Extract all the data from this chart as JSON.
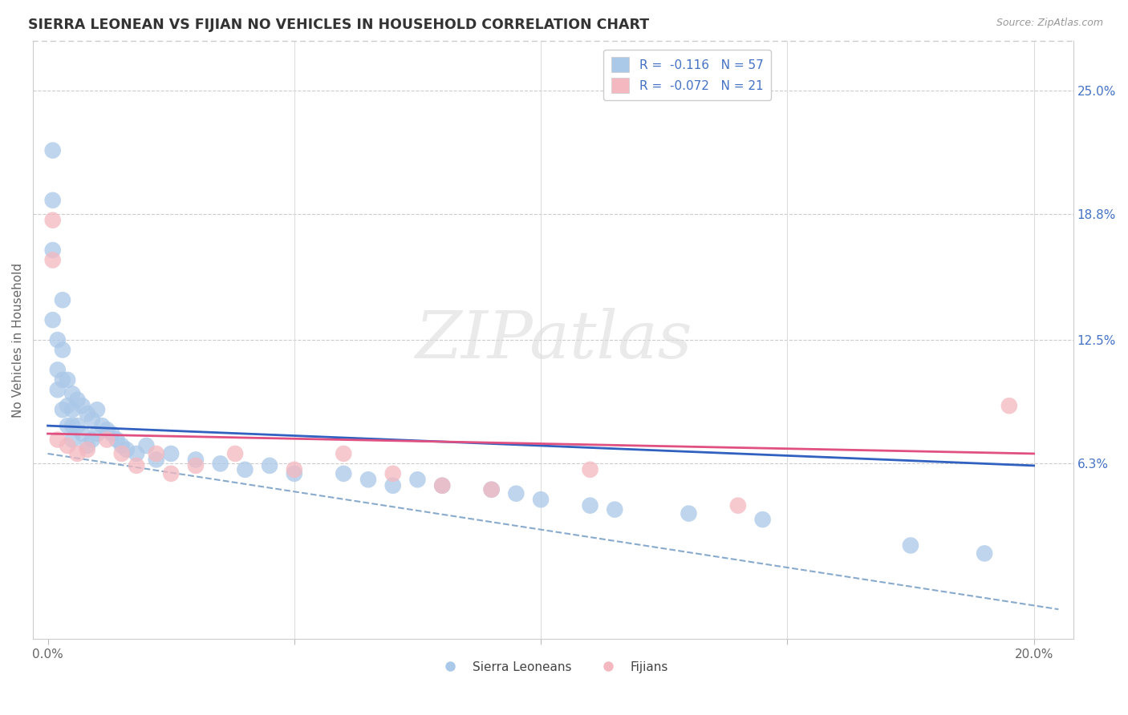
{
  "title": "SIERRA LEONEAN VS FIJIAN NO VEHICLES IN HOUSEHOLD CORRELATION CHART",
  "source": "Source: ZipAtlas.com",
  "ylabel_label": "No Vehicles in Household",
  "x_ticks": [
    0.0,
    0.05,
    0.1,
    0.15,
    0.2
  ],
  "x_tick_labels": [
    "0.0%",
    "",
    "",
    "",
    "20.0%"
  ],
  "y_tick_labels_right": [
    "25.0%",
    "18.8%",
    "12.5%",
    "6.3%"
  ],
  "y_ticks_right": [
    0.25,
    0.188,
    0.125,
    0.063
  ],
  "xlim": [
    -0.003,
    0.208
  ],
  "ylim": [
    -0.025,
    0.275
  ],
  "color_blue": "#aac8e8",
  "color_pink": "#f4b8c0",
  "line_blue": "#3060c0",
  "line_pink": "#e05080",
  "line_dashed_color": "#88aacc",
  "watermark_text": "ZIPatlas",
  "sl_x": [
    0.001,
    0.001,
    0.001,
    0.001,
    0.002,
    0.002,
    0.002,
    0.003,
    0.003,
    0.003,
    0.003,
    0.004,
    0.004,
    0.004,
    0.005,
    0.005,
    0.005,
    0.005,
    0.006,
    0.006,
    0.007,
    0.007,
    0.008,
    0.008,
    0.009,
    0.009,
    0.01,
    0.01,
    0.011,
    0.012,
    0.013,
    0.014,
    0.015,
    0.016,
    0.018,
    0.02,
    0.022,
    0.025,
    0.03,
    0.035,
    0.04,
    0.045,
    0.05,
    0.06,
    0.065,
    0.07,
    0.075,
    0.08,
    0.09,
    0.095,
    0.1,
    0.11,
    0.115,
    0.13,
    0.145,
    0.175,
    0.19
  ],
  "sl_y": [
    0.22,
    0.195,
    0.17,
    0.135,
    0.125,
    0.11,
    0.1,
    0.145,
    0.12,
    0.105,
    0.09,
    0.105,
    0.092,
    0.082,
    0.098,
    0.09,
    0.082,
    0.075,
    0.095,
    0.082,
    0.092,
    0.078,
    0.088,
    0.072,
    0.085,
    0.075,
    0.09,
    0.078,
    0.082,
    0.08,
    0.078,
    0.075,
    0.072,
    0.07,
    0.068,
    0.072,
    0.065,
    0.068,
    0.065,
    0.063,
    0.06,
    0.062,
    0.058,
    0.058,
    0.055,
    0.052,
    0.055,
    0.052,
    0.05,
    0.048,
    0.045,
    0.042,
    0.04,
    0.038,
    0.035,
    0.022,
    0.018
  ],
  "fj_x": [
    0.001,
    0.001,
    0.002,
    0.004,
    0.006,
    0.008,
    0.012,
    0.015,
    0.018,
    0.022,
    0.025,
    0.03,
    0.038,
    0.05,
    0.06,
    0.07,
    0.08,
    0.09,
    0.11,
    0.14,
    0.195
  ],
  "fj_y": [
    0.185,
    0.165,
    0.075,
    0.072,
    0.068,
    0.07,
    0.075,
    0.068,
    0.062,
    0.068,
    0.058,
    0.062,
    0.068,
    0.06,
    0.068,
    0.058,
    0.052,
    0.05,
    0.06,
    0.042,
    0.092
  ],
  "blue_line_x0": 0.0,
  "blue_line_x1": 0.2,
  "blue_line_y0": 0.082,
  "blue_line_y1": 0.062,
  "pink_line_x0": 0.0,
  "pink_line_x1": 0.2,
  "pink_line_y0": 0.078,
  "pink_line_y1": 0.068,
  "dash_line_x0": 0.0,
  "dash_line_x1": 0.205,
  "dash_line_y0": 0.068,
  "dash_line_y1": -0.01
}
